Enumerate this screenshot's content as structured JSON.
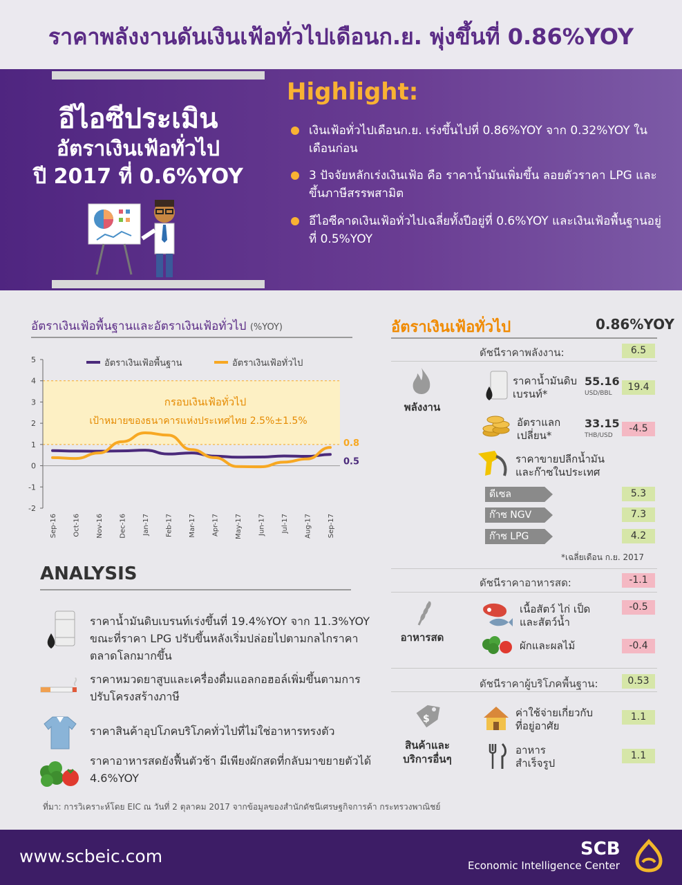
{
  "title": "ราคาพลังงานดันเงินเฟ้อทั่วไปเดือนก.ย. พุ่งขึ้นที่ 0.86%YOY",
  "banner": {
    "left_heading_1": "อีไอซีประเมิน",
    "left_heading_2": "อัตราเงินเฟ้อทั่วไป",
    "left_heading_3": "ปี 2017 ที่ 0.6%YOY",
    "highlight_title": "Highlight:",
    "highlights": [
      "เงินเฟ้อทั่วไปเดือนก.ย. เร่งขึ้นไปที่ 0.86%YOY จาก 0.32%YOY ในเดือนก่อน",
      "3 ปัจจัยหลักเร่งเงินเฟ้อ คือ ราคาน้ำมันเพิ่มขึ้น ลอยตัวราคา LPG และขึ้นภาษีสรรพสามิต",
      "อีไอซีคาดเงินเฟ้อทั่วไปเฉลี่ยทั้งปีอยู่ที่ 0.6%YOY และเงินเฟ้อพื้นฐานอยู่ที่ 0.5%YOY"
    ]
  },
  "chart": {
    "title": "อัตราเงินเฟ้อพื้นฐานและอัตราเงินเฟ้อทั่วไป",
    "title_unit": "(%YOY)",
    "band_label_1": "กรอบเงินเฟ้อทั่วไป",
    "band_label_2": "เป้าหมายของธนาคารแห่งประเทศไทย 2.5%±1.5%",
    "end_label_headline": "0.86",
    "end_label_core": "0.53"
  },
  "chart_data": {
    "type": "line",
    "x": [
      "Sep-16",
      "Oct-16",
      "Nov-16",
      "Dec-16",
      "Jan-17",
      "Feb-17",
      "Mar-17",
      "Apr-17",
      "May-17",
      "Jun-17",
      "Jul-17",
      "Aug-17",
      "Sep-17"
    ],
    "series": [
      {
        "name": "อัตราเงินเฟ้อพื้นฐาน",
        "color": "#4b2a7b",
        "values": [
          0.71,
          0.69,
          0.68,
          0.7,
          0.73,
          0.55,
          0.6,
          0.45,
          0.4,
          0.41,
          0.46,
          0.44,
          0.53
        ]
      },
      {
        "name": "อัตราเงินเฟ้อทั่วไป",
        "color": "#f7a823",
        "values": [
          0.38,
          0.34,
          0.6,
          1.13,
          1.55,
          1.44,
          0.76,
          0.38,
          -0.04,
          -0.05,
          0.17,
          0.32,
          0.86
        ]
      }
    ],
    "band": [
      1,
      4
    ],
    "ylim": [
      -2,
      5
    ],
    "yticks": [
      -2,
      -1,
      0,
      1,
      2,
      3,
      4,
      5
    ],
    "legend": "top"
  },
  "analysis": {
    "title": "ANALYSIS",
    "items": [
      "ราคาน้ำมันดิบเบรนท์เร่งขึ้นที่ 19.4%YOY จาก 11.3%YOY ขณะที่ราคา LPG ปรับขึ้นหลังเริ่มปล่อยไปตามกลไกราคาตลาดโลกมากขึ้น",
      "ราคาหมวดยาสูบและเครื่องดื่มแอลกอฮอล์เพิ่มขึ้นตามการปรับโครงสร้างภาษี",
      "ราคาสินค้าอุปโภคบริโภคทั่วไปที่ไม่ใช่อาหารทรงตัว",
      "ราคาอาหารสดยังฟื้นตัวช้า มีเพียงผักสดที่กลับมาขยายตัวได้ 4.6%YOY"
    ]
  },
  "right": {
    "title": "อัตราเงินเฟ้อทั่วไป",
    "value": "0.86%YOY",
    "energy": {
      "index_label": "ดัชนีราคาพลังงาน:",
      "index_value": "6.5",
      "category": "พลังงาน",
      "brent_label": "ราคาน้ำมันดิบเบรนท์*",
      "brent_num": "55.16",
      "brent_unit": "USD/BBL",
      "brent_value": "19.4",
      "fx_label": "อัตราแลกเปลี่ยน*",
      "fx_num": "33.15",
      "fx_unit": "THB/USD",
      "fx_value": "-4.5",
      "retail_label": "ราคาขายปลีกน้ำมันและก๊าซในประเทศ",
      "fuels": [
        {
          "name": "ดีเซล",
          "value": "5.3"
        },
        {
          "name": "ก๊าซ NGV",
          "value": "7.3"
        },
        {
          "name": "ก๊าซ LPG",
          "value": "4.2"
        }
      ],
      "note": "*เฉลี่ยเดือน ก.ย. 2017"
    },
    "food": {
      "index_label": "ดัชนีราคาอาหารสด:",
      "index_value": "-1.1",
      "category": "อาหารสด",
      "meat_label": "เนื้อสัตว์ ไก่ เป็ดและสัตว์น้ำ",
      "meat_value": "-0.5",
      "veg_label": "ผักและผลไม้",
      "veg_value": "-0.4"
    },
    "core": {
      "index_label": "ดัชนีราคาผู้บริโภคพื้นฐาน:",
      "index_value": "0.53",
      "category": "สินค้าและบริการอื่นๆ",
      "housing_label": "ค่าใช้จ่ายเกี่ยวกับที่อยู่อาศัย",
      "housing_value": "1.1",
      "food_ready_label": "อาหารสำเร็จรูป",
      "food_ready_value": "1.1"
    }
  },
  "source": "ที่มา: การวิเคราะห์โดย EIC ณ วันที่ 2 ตุลาคม 2017 จากข้อมูลของสำนักดัชนีเศรษฐกิจการค้า กระทรวงพาณิชย์",
  "footer": {
    "url": "www.scbeic.com",
    "brand": "SCB",
    "brand_sub": "Economic Intelligence Center"
  }
}
